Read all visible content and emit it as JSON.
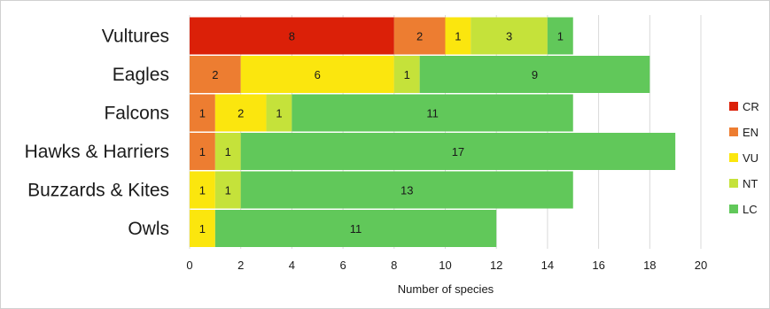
{
  "chart_data": {
    "type": "bar",
    "orientation": "horizontal",
    "stacked": true,
    "categories": [
      "Vultures",
      "Eagles",
      "Falcons",
      "Hawks & Harriers",
      "Buzzards & Kites",
      "Owls"
    ],
    "series": [
      {
        "name": "CR",
        "color": "#db2008",
        "values": [
          8,
          0,
          0,
          0,
          0,
          0
        ]
      },
      {
        "name": "EN",
        "color": "#ed7d31",
        "values": [
          2,
          2,
          1,
          1,
          0,
          0
        ]
      },
      {
        "name": "VU",
        "color": "#fbe60e",
        "values": [
          1,
          6,
          2,
          0,
          1,
          1
        ]
      },
      {
        "name": "NT",
        "color": "#c5e23a",
        "values": [
          3,
          1,
          1,
          1,
          1,
          0
        ]
      },
      {
        "name": "LC",
        "color": "#61c85a",
        "values": [
          1,
          9,
          11,
          17,
          13,
          11
        ]
      }
    ],
    "xlabel": "Number of species",
    "ylabel": "",
    "xlim": [
      0,
      20
    ],
    "xticks": [
      0,
      2,
      4,
      6,
      8,
      10,
      12,
      14,
      16,
      18,
      20
    ],
    "grid": "vertical",
    "legend_position": "right"
  }
}
